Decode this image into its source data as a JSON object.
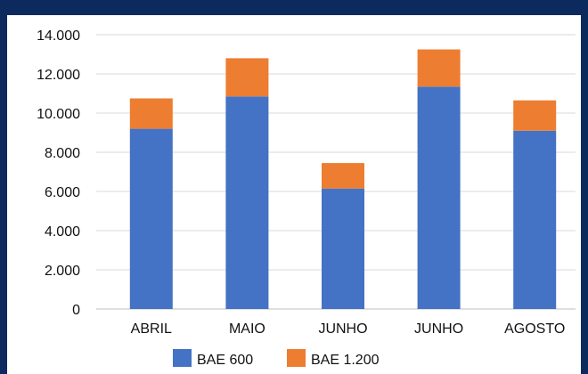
{
  "chart_data": {
    "type": "bar",
    "stacked": true,
    "title": "",
    "xlabel": "",
    "ylabel": "",
    "categories": [
      "ABRIL",
      "MAIO",
      "JUNHO",
      "JUNHO",
      "AGOSTO"
    ],
    "series": [
      {
        "name": "BAE 600",
        "color": "#4472c4",
        "values": [
          9200,
          10850,
          6150,
          11350,
          9100
        ]
      },
      {
        "name": "BAE 1.200",
        "color": "#ed7d31",
        "values": [
          1550,
          1950,
          1300,
          1900,
          1550
        ]
      }
    ],
    "ylim": [
      0,
      14000
    ],
    "yticks": [
      0,
      2000,
      4000,
      6000,
      8000,
      10000,
      12000,
      14000
    ],
    "ytick_labels": [
      "0",
      "2.000",
      "4.000",
      "6.000",
      "8.000",
      "10.000",
      "12.000",
      "14.000"
    ],
    "grid": true,
    "legend": "bottom"
  },
  "colors": {
    "background": "#0d2a5e",
    "panel": "#ffffff",
    "grid": "#d9d9d9"
  }
}
